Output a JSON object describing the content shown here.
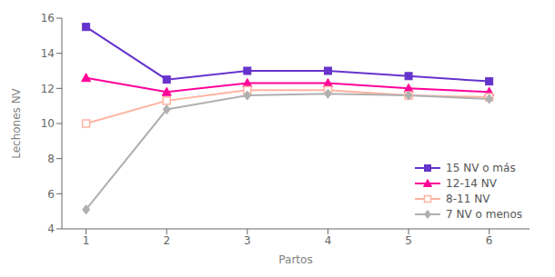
{
  "chart_data": {
    "type": "line",
    "x": [
      1,
      2,
      3,
      4,
      5,
      6
    ],
    "series": [
      {
        "name": "15 NV o más",
        "color": "#6633cc",
        "marker": "square",
        "values": [
          15.5,
          12.5,
          13.0,
          13.0,
          12.7,
          12.4
        ]
      },
      {
        "name": "12-14 NV",
        "color": "#ff0099",
        "marker": "triangle",
        "values": [
          12.6,
          11.8,
          12.3,
          12.3,
          12.0,
          11.8
        ]
      },
      {
        "name": "8-11 NV",
        "color": "#ffb3a0",
        "marker": "open_square",
        "values": [
          10.0,
          11.3,
          11.9,
          11.9,
          11.6,
          11.5
        ]
      },
      {
        "name": "7 NV o menos",
        "color": "#b0b0b0",
        "marker": "diamond",
        "values": [
          5.1,
          10.8,
          11.6,
          11.7,
          11.6,
          11.4
        ]
      }
    ],
    "xlabel": "Partos",
    "ylabel": "Lechones NV",
    "xlim": [
      0.7,
      6.5
    ],
    "xticks": [
      1,
      2,
      3,
      4,
      5,
      6
    ],
    "ylim": [
      4,
      16
    ],
    "yticks": [
      4,
      6,
      8,
      10,
      12,
      14,
      16
    ],
    "grid": false,
    "legend": "lower right"
  }
}
